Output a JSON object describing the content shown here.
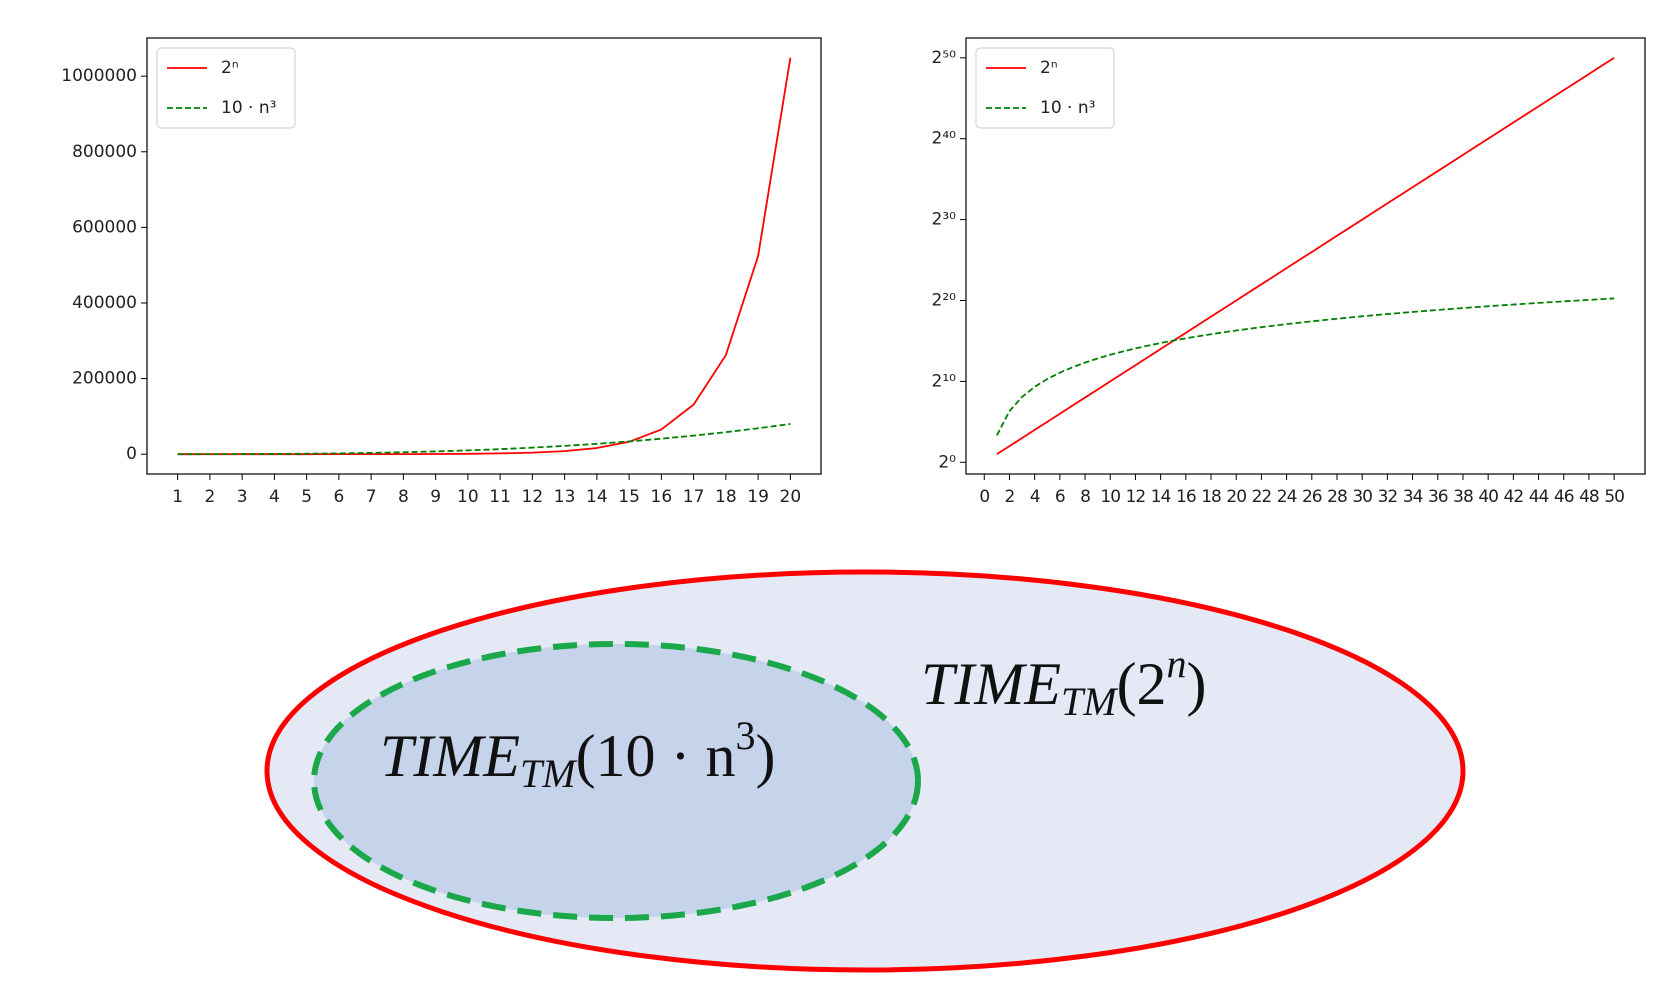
{
  "chart_data": [
    {
      "type": "line",
      "x": [
        1,
        2,
        3,
        4,
        5,
        6,
        7,
        8,
        9,
        10,
        11,
        12,
        13,
        14,
        15,
        16,
        17,
        18,
        19,
        20
      ],
      "series": [
        {
          "name": "2ⁿ",
          "color": "#ff0000",
          "linestyle": "solid",
          "values": [
            2,
            4,
            8,
            16,
            32,
            64,
            128,
            256,
            512,
            1024,
            2048,
            4096,
            8192,
            16384,
            32768,
            65536,
            131072,
            262144,
            524288,
            1048576
          ]
        },
        {
          "name": "10 · n³",
          "color": "#008000",
          "linestyle": "dashed",
          "values": [
            10,
            80,
            270,
            640,
            1250,
            2160,
            3430,
            5120,
            7290,
            10000,
            13310,
            17280,
            21970,
            27440,
            33750,
            40960,
            49130,
            58320,
            68590,
            80000
          ]
        }
      ],
      "xlim": [
        0.05,
        20.95
      ],
      "xticks": [
        1,
        2,
        3,
        4,
        5,
        6,
        7,
        8,
        9,
        10,
        11,
        12,
        13,
        14,
        15,
        16,
        17,
        18,
        19,
        20
      ],
      "ylim": [
        -52427,
        1101005
      ],
      "yticks": [
        0,
        200000,
        400000,
        600000,
        800000,
        1000000
      ],
      "log_y": false,
      "legend": "upper left"
    },
    {
      "type": "line",
      "x": [
        1,
        2,
        3,
        4,
        5,
        6,
        7,
        8,
        9,
        10,
        11,
        12,
        13,
        14,
        15,
        16,
        17,
        18,
        19,
        20,
        21,
        22,
        23,
        24,
        25,
        26,
        27,
        28,
        29,
        30,
        31,
        32,
        33,
        34,
        35,
        36,
        37,
        38,
        39,
        40,
        41,
        42,
        43,
        44,
        45,
        46,
        47,
        48,
        49,
        50
      ],
      "series": [
        {
          "name": "2ⁿ",
          "color": "#ff0000",
          "linestyle": "solid",
          "values": [
            2,
            4,
            8,
            16,
            32,
            64,
            128,
            256,
            512,
            1024,
            2048,
            4096,
            8192,
            16384,
            32768,
            65536,
            131072,
            262144,
            524288,
            1048576,
            2097152,
            4194304,
            8388608,
            16777216,
            33554432,
            67108864,
            134217728,
            268435456,
            536870912,
            1073741824,
            2147483648,
            4294967296,
            8589934592,
            17179869184,
            34359738368,
            68719476736,
            137438953472,
            274877906944,
            549755813888,
            1099511627776,
            2199023255552,
            4398046511104,
            8796093022208,
            17592186044416,
            35184372088832,
            70368744177664,
            140737488355328,
            281474976710656,
            562949953421312,
            1125899906842624
          ]
        },
        {
          "name": "10 · n³",
          "color": "#008000",
          "linestyle": "dashed",
          "values": [
            10,
            80,
            270,
            640,
            1250,
            2160,
            3430,
            5120,
            7290,
            10000,
            13310,
            17280,
            21970,
            27440,
            33750,
            40960,
            49130,
            58320,
            68590,
            80000,
            92610,
            106480,
            121670,
            138240,
            156250,
            175760,
            196830,
            219520,
            243890,
            270000,
            297910,
            327680,
            359370,
            393040,
            428750,
            466560,
            506530,
            548720,
            593190,
            640000,
            689210,
            740880,
            795070,
            851840,
            911250,
            973360,
            1038230,
            1105920,
            1176490,
            1250000
          ]
        }
      ],
      "xlim": [
        -1.45,
        52.45
      ],
      "xticks": [
        0,
        2,
        4,
        6,
        8,
        10,
        12,
        14,
        16,
        18,
        20,
        22,
        24,
        26,
        28,
        30,
        32,
        34,
        36,
        38,
        40,
        42,
        44,
        46,
        48,
        50
      ],
      "ylim": [
        0.366,
        6152000000000000
      ],
      "yticks": [
        {
          "value": 1,
          "label": "2⁰"
        },
        {
          "value": 1024,
          "label": "2¹⁰"
        },
        {
          "value": 1048576,
          "label": "2²⁰"
        },
        {
          "value": 1073741824,
          "label": "2³⁰"
        },
        {
          "value": 1099511627776,
          "label": "2⁴⁰"
        },
        {
          "value": 1125899906842624,
          "label": "2⁵⁰"
        }
      ],
      "log_y": true,
      "legend": "upper left"
    }
  ],
  "diagram": {
    "outer_label": {
      "main": "TIME",
      "sub": "TM",
      "open": "(2",
      "sup": "n",
      "close": ")"
    },
    "inner_label": {
      "main": "TIME",
      "sub": "TM",
      "open": "(10 · n",
      "sup": "3",
      "close": ")"
    }
  }
}
